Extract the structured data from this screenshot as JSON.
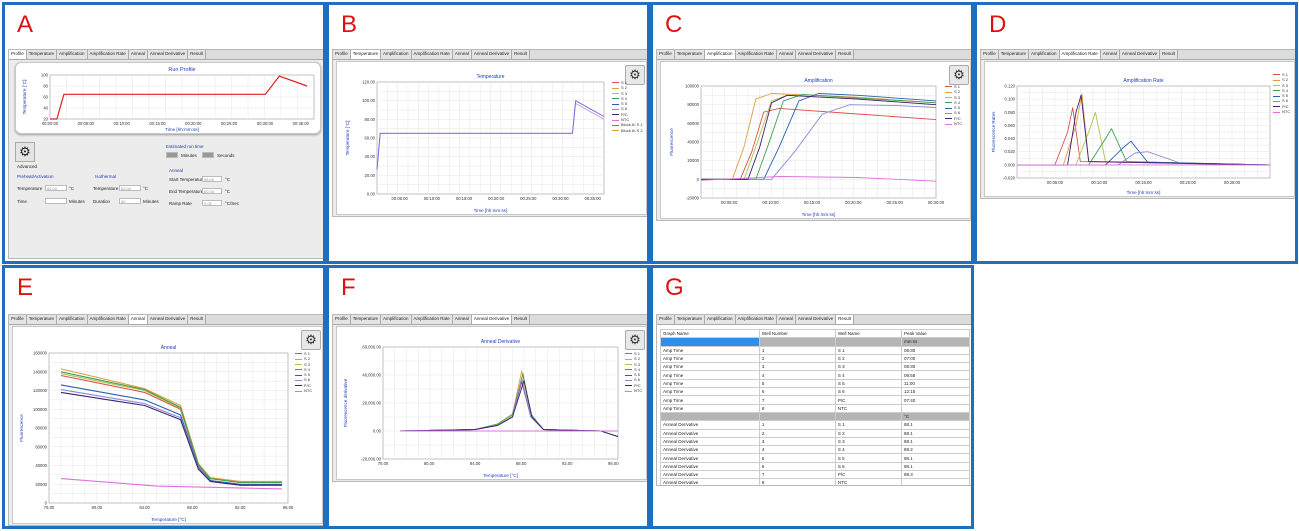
{
  "panels": {
    "a": {
      "label": "A"
    },
    "b": {
      "label": "B"
    },
    "c": {
      "label": "C"
    },
    "d": {
      "label": "D"
    },
    "e": {
      "label": "E"
    },
    "f": {
      "label": "F"
    },
    "g": {
      "label": "G"
    }
  },
  "tabs": [
    "Profile",
    "Temperature",
    "Amplification",
    "Amplification Rate",
    "Anneal",
    "Anneal Derivative",
    "Result"
  ],
  "legend_entries": [
    "S 1",
    "S 2",
    "S 3",
    "S 4",
    "S 5",
    "S 6",
    "P/C",
    "NTC"
  ],
  "legend_b": [
    "S 1",
    "S 2",
    "S 3",
    "S 4",
    "S 5",
    "S 6",
    "P/C",
    "NTC",
    "Block A\\ S 1",
    "Block A\\ S 2"
  ],
  "series_colors": [
    "#e05050",
    "#e0a040",
    "#a8c850",
    "#40a050",
    "#2860b0",
    "#8a8ad8",
    "#402070",
    "#e070e0"
  ],
  "profile": {
    "title": "Run Profile",
    "xlabel": "Time [hh:mm:ss]",
    "ylabel": "Temperature [°C]",
    "xticks": [
      "00:00:00",
      "00:05:00",
      "00:10:00",
      "00:15:00",
      "00:20:00",
      "00:25:00",
      "00:30:00",
      "00:35:00"
    ],
    "yticks": [
      "20",
      "40",
      "60",
      "80",
      "100"
    ],
    "advanced_label": "Advanced",
    "estimated_run_time": "Estimated run time",
    "minutes_label": "Minutes",
    "seconds_label": "Seconds",
    "preheat_title": "Preheat/Activation",
    "isothermal_title": "Isothermal",
    "anneal_title": "Anneal",
    "temperature_label": "Temperature",
    "time_label": "Time",
    "duration_label": "Duration",
    "unit_c": "°C",
    "unit_minutes": "Minutes",
    "start_temperature_label": "Start Temperature",
    "end_temperature_label": "End Temperature",
    "ramp_rate_label": "Ramp Rate",
    "ramp_unit": "°C/Sec",
    "preheat_temp": "65.00",
    "isothermal_temp": "65.00",
    "isothermal_duration": "30",
    "start_temp": "98.00",
    "end_temp": "80.00",
    "ramp_rate": "0.05"
  },
  "temperature": {
    "title": "Temperature",
    "xlabel": "Time [hh:mm:ss]",
    "ylabel": "Temperature [°C]",
    "yticks": [
      "0.00",
      "20.00",
      "40.00",
      "60.00",
      "80.00",
      "100.00",
      "120.00"
    ],
    "xticks": [
      "00:05:00",
      "00:10:00",
      "00:15:00",
      "00:20:00",
      "00:25:00",
      "00:30:00",
      "00:35:00"
    ]
  },
  "amplification": {
    "title": "Amplification",
    "xlabel": "Time [hh:mm:ss]",
    "ylabel": "Fluorescence",
    "yticks": [
      "-20000",
      "0",
      "20000",
      "40000",
      "60000",
      "80000",
      "100000"
    ],
    "xticks": [
      "00:05:00",
      "00:10:00",
      "00:15:00",
      "00:20:00",
      "00:25:00",
      "00:30:00"
    ]
  },
  "amplification_rate": {
    "title": "Amplification Rate",
    "xlabel": "Time [hh:mm:ss]",
    "ylabel": "Fluorescence Rates",
    "yticks": [
      "-0.020",
      "0.000",
      "0.020",
      "0.040",
      "0.060",
      "0.080",
      "0.100",
      "0.120"
    ],
    "xticks": [
      "00:05:00",
      "00:10:00",
      "00:15:00",
      "00:20:00",
      "00:25:00"
    ]
  },
  "anneal": {
    "title": "Anneal",
    "xlabel": "Temperature [°C]",
    "ylabel": "Fluorescence",
    "yticks": [
      "0",
      "20000",
      "40000",
      "60000",
      "80000",
      "100000",
      "120000",
      "140000",
      "160000"
    ],
    "xticks": [
      "76.00",
      "80.00",
      "84.00",
      "88.00",
      "92.00",
      "96.00"
    ]
  },
  "anneal_derivative": {
    "title": "Anneal Derivative",
    "xlabel": "Temperature [°C]",
    "ylabel": "Fluorescence derivative",
    "yticks": [
      "-20,000.00",
      "0.00",
      "20,000.00",
      "40,000.00",
      "60,000.00"
    ],
    "xticks": [
      "76.00",
      "80.00",
      "84.00",
      "88.00",
      "92.00",
      "96.00"
    ]
  },
  "result": {
    "headers": [
      "Graph Name",
      "Well Number",
      "Well Name",
      "Peak Value"
    ],
    "amp_unit": "mm:ss",
    "anneal_unit": "°C",
    "amp_rows": [
      [
        "Amp Time",
        "1",
        "S 1",
        "08:30"
      ],
      [
        "Amp Time",
        "2",
        "S 2",
        "07:00"
      ],
      [
        "Amp Time",
        "3",
        "S 3",
        "08:30"
      ],
      [
        "Amp Time",
        "4",
        "S 4",
        "09:58"
      ],
      [
        "Amp Time",
        "5",
        "S 5",
        "11:00"
      ],
      [
        "Amp Time",
        "6",
        "S 6",
        "12:15"
      ],
      [
        "Amp Time",
        "7",
        "P/C",
        "07:40"
      ],
      [
        "Amp Time",
        "8",
        "NTC",
        ""
      ]
    ],
    "anneal_rows": [
      [
        "Anneal Derivative",
        "1",
        "S 1",
        "88.1"
      ],
      [
        "Anneal Derivative",
        "2",
        "S 2",
        "88.1"
      ],
      [
        "Anneal Derivative",
        "3",
        "S 3",
        "88.1"
      ],
      [
        "Anneal Derivative",
        "4",
        "S 4",
        "88.2"
      ],
      [
        "Anneal Derivative",
        "5",
        "S 5",
        "88.1"
      ],
      [
        "Anneal Derivative",
        "6",
        "S 6",
        "88.1"
      ],
      [
        "Anneal Derivative",
        "7",
        "P/C",
        "88.3"
      ],
      [
        "Anneal Derivative",
        "8",
        "NTC",
        ""
      ]
    ]
  },
  "chart_data": [
    {
      "type": "line",
      "title": "Run Profile",
      "xlabel": "Time [hh:mm:ss]",
      "ylabel": "Temperature [°C]",
      "ylim": [
        20,
        100
      ],
      "series": [
        {
          "x": [
            0,
            1,
            2,
            30,
            31,
            33,
            37
          ],
          "values": [
            20,
            20,
            65,
            65,
            65,
            98,
            80
          ]
        }
      ]
    },
    {
      "type": "line",
      "title": "Temperature",
      "xlabel": "Time [hh:mm:ss]",
      "ylabel": "Temperature [°C]",
      "ylim": [
        0,
        120
      ],
      "series": [
        {
          "name": "S 1",
          "x": [
            0,
            0.5,
            31,
            31.5,
            36
          ],
          "values": [
            26,
            65,
            65,
            97,
            80
          ]
        },
        {
          "name": "S 2",
          "x": [
            0,
            0.5,
            31,
            31.5,
            36
          ],
          "values": [
            26,
            65,
            65,
            100,
            83
          ]
        }
      ]
    },
    {
      "type": "line",
      "title": "Amplification",
      "xlabel": "Time [hh:mm:ss]",
      "ylabel": "Fluorescence",
      "ylim": [
        -20000,
        100000
      ],
      "series": [
        {
          "name": "S 1",
          "x": [
            0,
            5,
            6.5,
            8,
            10,
            20,
            30
          ],
          "values": [
            0,
            0,
            30000,
            72000,
            76000,
            70000,
            64000
          ]
        },
        {
          "name": "S 2",
          "x": [
            0,
            4,
            5.5,
            7,
            9,
            20,
            30
          ],
          "values": [
            0,
            0,
            35000,
            86000,
            92000,
            88000,
            82000
          ]
        },
        {
          "name": "S 3",
          "x": [
            0,
            5.5,
            7,
            9,
            11,
            20,
            30
          ],
          "values": [
            0,
            0,
            35000,
            84000,
            90000,
            86000,
            80000
          ]
        },
        {
          "name": "S 4",
          "x": [
            0,
            7,
            8.5,
            10.5,
            13,
            20,
            30
          ],
          "values": [
            0,
            0,
            35000,
            84000,
            91000,
            87000,
            82000
          ]
        },
        {
          "name": "S 5",
          "x": [
            0,
            8,
            10,
            12.5,
            15,
            20,
            30
          ],
          "values": [
            0,
            0,
            35000,
            84000,
            92000,
            90000,
            84000
          ]
        },
        {
          "name": "S 6",
          "x": [
            0,
            9,
            12,
            15.5,
            19,
            25,
            30
          ],
          "values": [
            0,
            0,
            30000,
            70000,
            80000,
            79000,
            77000
          ]
        },
        {
          "name": "P/C",
          "x": [
            0,
            6,
            7.5,
            9,
            11,
            20,
            30
          ],
          "values": [
            0,
            0,
            35000,
            82000,
            90000,
            86000,
            80000
          ]
        },
        {
          "name": "NTC",
          "x": [
            0,
            10,
            20,
            30
          ],
          "values": [
            -1000,
            3000,
            2000,
            -2000
          ]
        }
      ]
    },
    {
      "type": "line",
      "title": "Amplification Rate",
      "xlabel": "Time [hh:mm:ss]",
      "ylabel": "Fluorescence Rates",
      "ylim": [
        -0.02,
        0.12
      ],
      "series": [
        {
          "name": "S 1",
          "x": [
            0,
            4.5,
            6,
            6.6,
            7.5,
            30
          ],
          "values": [
            0,
            0,
            0.05,
            0.087,
            0.005,
            0
          ]
        },
        {
          "name": "S 2",
          "x": [
            0,
            5.5,
            7,
            7.7,
            8.5,
            30
          ],
          "values": [
            0,
            0,
            0.06,
            0.108,
            0.005,
            0
          ]
        },
        {
          "name": "S 3",
          "x": [
            0,
            7,
            8.5,
            9.3,
            10.5,
            30
          ],
          "values": [
            0,
            0,
            0.05,
            0.08,
            0.005,
            0
          ]
        },
        {
          "name": "S 4",
          "x": [
            0,
            8.5,
            10.5,
            11.2,
            13,
            30
          ],
          "values": [
            0,
            0,
            0.04,
            0.055,
            0.005,
            0
          ]
        },
        {
          "name": "S 5",
          "x": [
            0,
            10.5,
            12.5,
            13.5,
            15.5,
            30
          ],
          "values": [
            0,
            0,
            0.025,
            0.036,
            0.004,
            0
          ]
        },
        {
          "name": "S 6",
          "x": [
            0,
            12,
            14,
            15.5,
            19.5,
            30
          ],
          "values": [
            0,
            0,
            0.018,
            0.02,
            0.002,
            0
          ]
        },
        {
          "name": "P/C",
          "x": [
            0,
            6,
            7,
            7.6,
            8.5,
            30
          ],
          "values": [
            0,
            0,
            0.08,
            0.106,
            0.005,
            0
          ]
        },
        {
          "name": "NTC",
          "x": [
            0,
            30
          ],
          "values": [
            0,
            0
          ]
        }
      ]
    },
    {
      "type": "line",
      "title": "Anneal",
      "xlabel": "Temperature [°C]",
      "ylabel": "Fluorescence",
      "ylim": [
        0,
        160000
      ],
      "series": [
        {
          "name": "S 1",
          "x": [
            77,
            84,
            87,
            88.5,
            89.5,
            92,
            95.5
          ],
          "values": [
            136000,
            118000,
            100000,
            40000,
            26000,
            22000,
            22000
          ]
        },
        {
          "name": "S 2",
          "x": [
            77,
            84,
            87,
            88.5,
            89.5,
            92,
            95.5
          ],
          "values": [
            143000,
            122000,
            104000,
            42000,
            27000,
            23000,
            23000
          ]
        },
        {
          "name": "S 3",
          "x": [
            77,
            84,
            87,
            88.5,
            89.5,
            92,
            95.5
          ],
          "values": [
            138000,
            120000,
            101000,
            41000,
            26000,
            22000,
            22000
          ]
        },
        {
          "name": "S 4",
          "x": [
            77,
            84,
            87,
            88.5,
            89.5,
            92,
            95.5
          ],
          "values": [
            140000,
            121000,
            102000,
            41000,
            26000,
            22000,
            22000
          ]
        },
        {
          "name": "S 5",
          "x": [
            77,
            84,
            87,
            88.5,
            89.5,
            92,
            95.5
          ],
          "values": [
            126000,
            110000,
            94000,
            38000,
            24000,
            20000,
            20000
          ]
        },
        {
          "name": "S 6",
          "x": [
            77,
            84,
            87,
            88.5,
            89.5,
            92,
            95.5
          ],
          "values": [
            121000,
            106000,
            91000,
            37000,
            23000,
            19000,
            19000
          ]
        },
        {
          "name": "P/C",
          "x": [
            77,
            84,
            87,
            88.5,
            89.5,
            92,
            95.5
          ],
          "values": [
            118000,
            104000,
            89000,
            36000,
            23000,
            19000,
            19000
          ]
        },
        {
          "name": "NTC",
          "x": [
            77,
            85,
            95.5
          ],
          "values": [
            26000,
            18000,
            15000
          ]
        }
      ]
    },
    {
      "type": "line",
      "title": "Anneal Derivative",
      "xlabel": "Temperature [°C]",
      "ylabel": "Fluorescence derivative",
      "ylim": [
        -20000,
        60000
      ],
      "series": [
        {
          "name": "S 1",
          "x": [
            77.5,
            84,
            86,
            87.3,
            88.1,
            88.9,
            90,
            95,
            96.5
          ],
          "values": [
            0,
            1000,
            4000,
            10000,
            35000,
            10000,
            1000,
            0,
            -4000
          ]
        },
        {
          "name": "S 2",
          "x": [
            77.5,
            84,
            86,
            87.3,
            88.1,
            88.9,
            90,
            95,
            96.5
          ],
          "values": [
            0,
            1000,
            5000,
            12000,
            43000,
            12000,
            1000,
            0,
            -4000
          ]
        },
        {
          "name": "S 3",
          "x": [
            77.5,
            84,
            86,
            87.3,
            88.1,
            88.9,
            90,
            95,
            96.5
          ],
          "values": [
            0,
            1000,
            4500,
            11000,
            38000,
            11000,
            1000,
            0,
            -4000
          ]
        },
        {
          "name": "S 4",
          "x": [
            77.5,
            84,
            86,
            87.3,
            88.2,
            88.9,
            90,
            95,
            96.5
          ],
          "values": [
            0,
            1000,
            5000,
            12000,
            41000,
            12000,
            1000,
            0,
            -4000
          ]
        },
        {
          "name": "S 5",
          "x": [
            77.5,
            84,
            86,
            87.3,
            88.1,
            88.9,
            90,
            95,
            96.5
          ],
          "values": [
            0,
            1000,
            4000,
            10000,
            36000,
            10000,
            1000,
            0,
            -4000
          ]
        },
        {
          "name": "S 6",
          "x": [
            77.5,
            84,
            86,
            87.3,
            88.1,
            88.9,
            90,
            95,
            96.5
          ],
          "values": [
            0,
            1000,
            4000,
            10000,
            37000,
            10000,
            1000,
            0,
            -4000
          ]
        },
        {
          "name": "P/C",
          "x": [
            77.5,
            84,
            86,
            87.3,
            88.3,
            89,
            90,
            95,
            96.5
          ],
          "values": [
            0,
            1000,
            4000,
            10000,
            36000,
            10000,
            1000,
            0,
            -4000
          ]
        },
        {
          "name": "NTC",
          "x": [
            77.5,
            96.5
          ],
          "values": [
            0,
            0
          ]
        }
      ]
    }
  ]
}
